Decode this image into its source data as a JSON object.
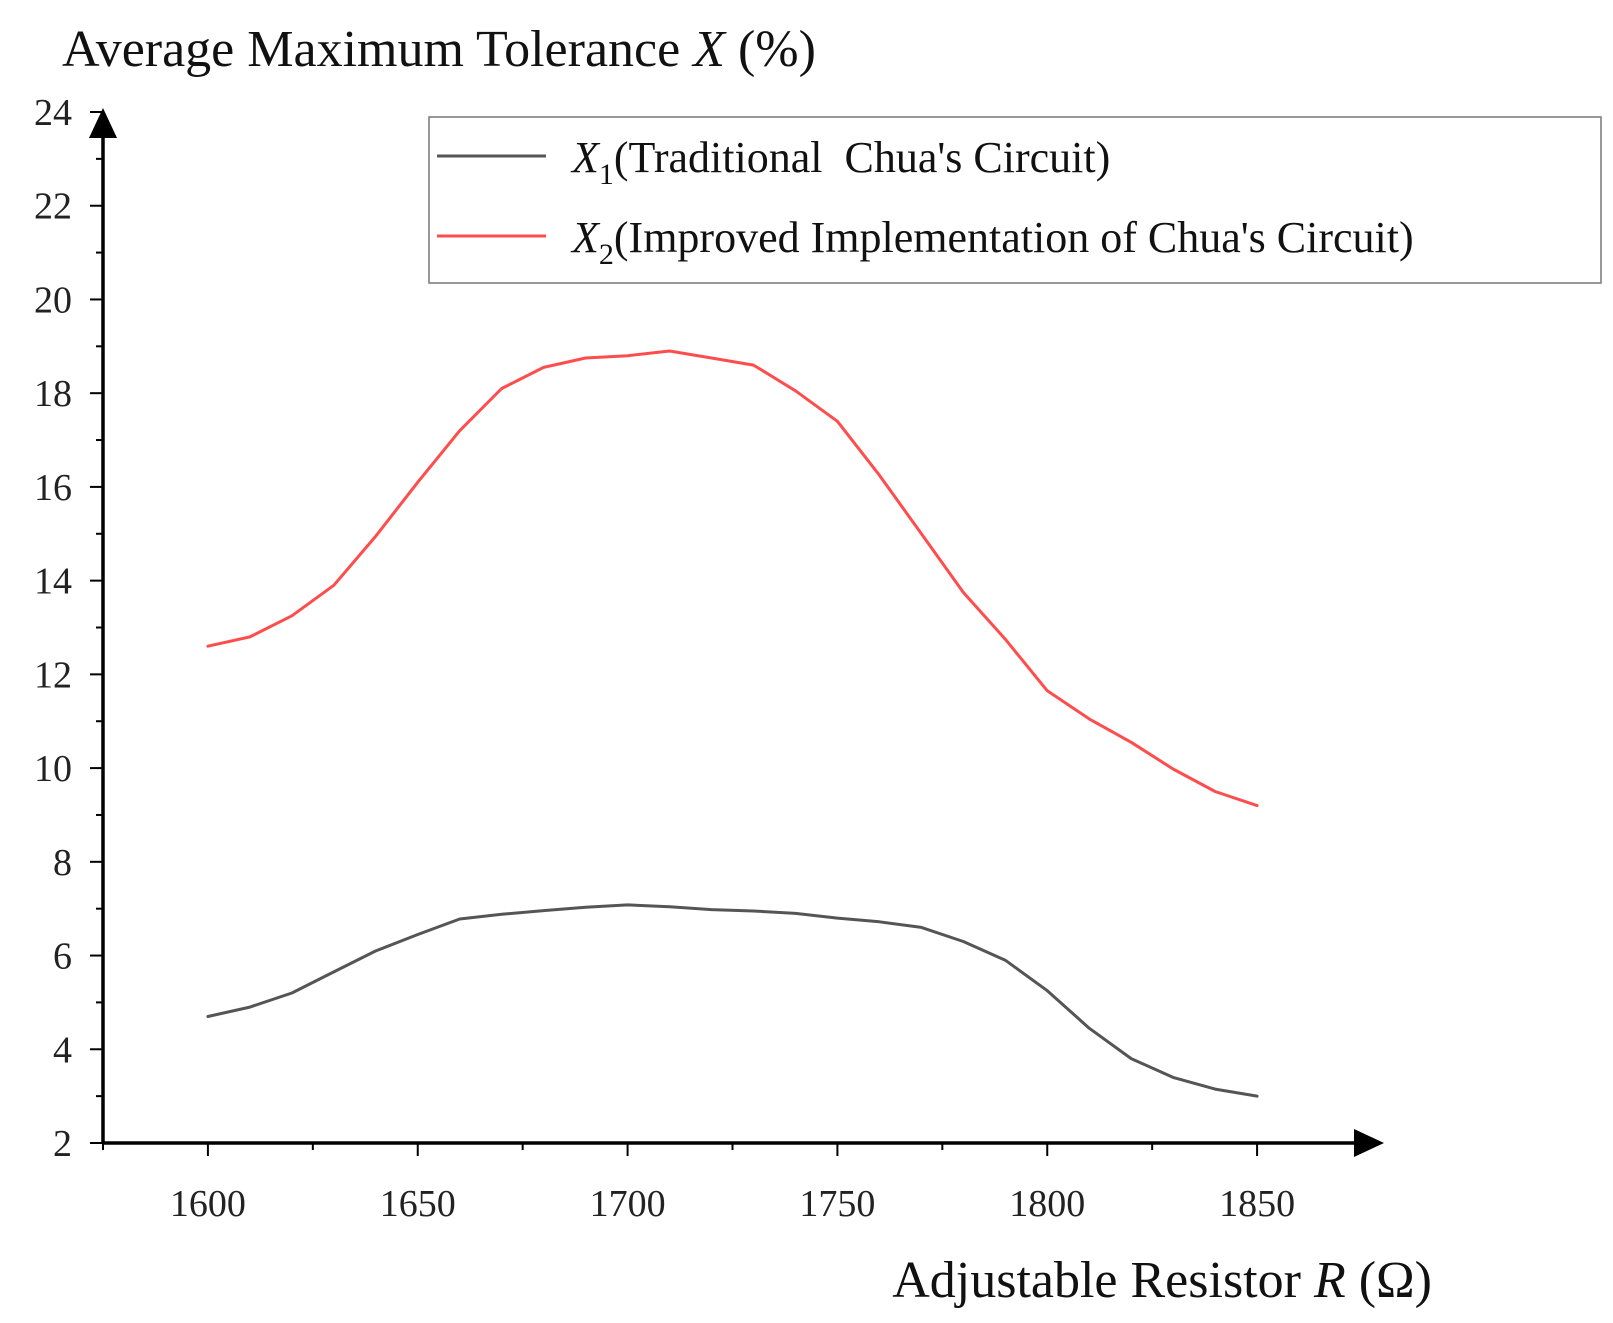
{
  "chart_data": {
    "type": "line",
    "title": "",
    "ylabel": {
      "prefix": "Average Maximum Tolerance ",
      "symbol": "X",
      "suffix": " (%)"
    },
    "xlabel": {
      "prefix": "Adjustable Resistor ",
      "symbol": "R",
      "suffix": " (Ω)"
    },
    "xlim": [
      1575,
      1875
    ],
    "ylim": [
      2,
      24
    ],
    "xticks": [
      1600,
      1650,
      1700,
      1750,
      1800,
      1850
    ],
    "yticks": [
      2,
      4,
      6,
      8,
      10,
      12,
      14,
      16,
      18,
      20,
      22,
      24
    ],
    "grid": false,
    "legend": {
      "placement": "top-right",
      "entries": [
        {
          "symbol": "X",
          "subscript": "1",
          "text": "(Traditional  Chua's Circuit)",
          "color": "#555555"
        },
        {
          "symbol": "X",
          "subscript": "2",
          "text": "(Improved Implementation of Chua's Circuit)",
          "color": "#ff4d4d"
        }
      ]
    },
    "x": [
      1600,
      1610,
      1620,
      1630,
      1640,
      1650,
      1660,
      1670,
      1680,
      1690,
      1700,
      1710,
      1720,
      1730,
      1740,
      1750,
      1760,
      1770,
      1780,
      1790,
      1800,
      1810,
      1820,
      1830,
      1840,
      1850
    ],
    "series": [
      {
        "name": "X1(Traditional  Chua's Circuit)",
        "color": "#555555",
        "values": [
          4.7,
          4.9,
          5.2,
          5.65,
          6.1,
          6.45,
          6.78,
          6.88,
          6.96,
          7.03,
          7.08,
          7.04,
          6.98,
          6.95,
          6.9,
          6.8,
          6.72,
          6.6,
          6.3,
          5.9,
          5.25,
          4.45,
          3.8,
          3.4,
          3.15,
          3.0
        ]
      },
      {
        "name": "X2(Improved Implementation of Chua's Circuit)",
        "color": "#ff4d4d",
        "values": [
          12.6,
          12.8,
          13.25,
          13.9,
          14.95,
          16.1,
          17.2,
          18.1,
          18.55,
          18.75,
          18.8,
          18.9,
          18.75,
          18.6,
          18.05,
          17.4,
          16.25,
          15.0,
          13.75,
          12.75,
          11.65,
          11.05,
          10.55,
          9.98,
          9.5,
          9.2
        ]
      }
    ]
  }
}
